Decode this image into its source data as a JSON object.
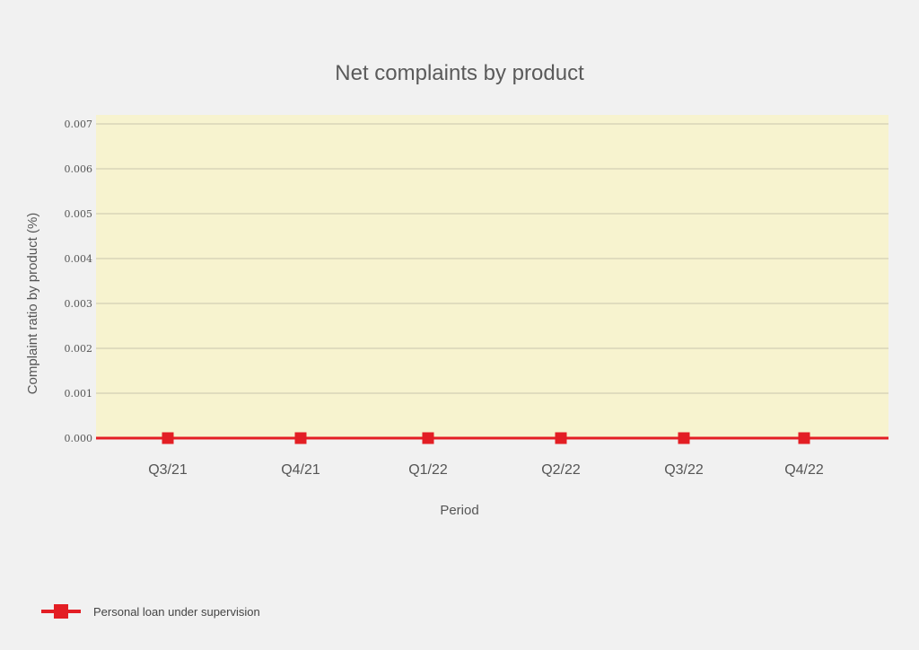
{
  "chart_data": {
    "type": "line",
    "title": "Net complaints by product",
    "xlabel": "Period",
    "ylabel": "Complaint ratio by product (%)",
    "categories": [
      "Q3/21",
      "Q4/21",
      "Q1/22",
      "Q2/22",
      "Q3/22",
      "Q4/22"
    ],
    "series": [
      {
        "name": "Personal loan under supervision",
        "values": [
          0.0,
          0.0,
          0.0,
          0.0,
          0.0,
          0.0
        ],
        "color": "#e31e24"
      }
    ],
    "ylim": [
      0,
      0.007
    ],
    "yticks": [
      "0.000",
      "0.001",
      "0.002",
      "0.003",
      "0.004",
      "0.005",
      "0.006",
      "0.007"
    ],
    "grid": true,
    "plot_background": "#f7f3cf",
    "legend_position": "bottom-left"
  }
}
